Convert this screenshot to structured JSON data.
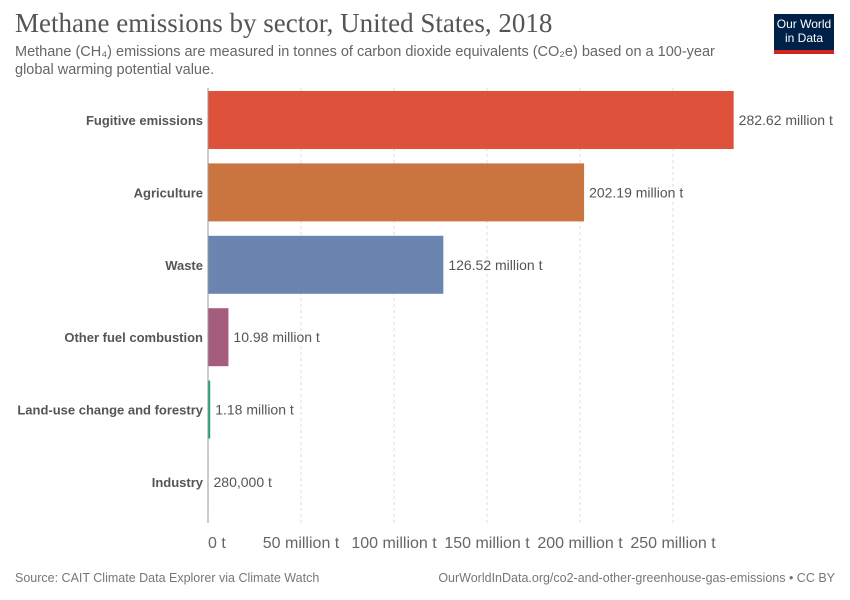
{
  "header": {
    "title": "Methane emissions by sector, United States, 2018",
    "subtitle": "Methane (CH₄) emissions are measured in tonnes of carbon dioxide equivalents (CO₂e) based on a 100-year global warming potential value.",
    "logo_line1": "Our World",
    "logo_line2": "in Data"
  },
  "footer": {
    "source": "Source: CAIT Climate Data Explorer via Climate Watch",
    "url": "OurWorldInData.org/co2-and-other-greenhouse-gas-emissions • CC BY"
  },
  "chart_data": {
    "type": "bar",
    "orientation": "horizontal",
    "title": "Methane emissions by sector, United States, 2018",
    "unit": "million t",
    "categories": [
      "Fugitive emissions",
      "Agriculture",
      "Waste",
      "Other fuel combustion",
      "Land-use change and forestry",
      "Industry"
    ],
    "values": [
      282.62,
      202.19,
      126.52,
      10.98,
      1.18,
      0.28
    ],
    "value_labels": [
      "282.62 million t",
      "202.19 million t",
      "126.52 million t",
      "10.98 million t",
      "1.18 million t",
      "280,000 t"
    ],
    "colors": [
      "#dd4b35",
      "#c8713a",
      "#6681ae",
      "#a2587a",
      "#18a069",
      "#888888"
    ],
    "xlim": [
      0,
      282.62
    ],
    "xticks": [
      0,
      50,
      100,
      150,
      200,
      250
    ],
    "xtick_labels": [
      "0 t",
      "50 million t",
      "100 million t",
      "150 million t",
      "200 million t",
      "250 million t"
    ],
    "grid": "vertical dashed"
  }
}
